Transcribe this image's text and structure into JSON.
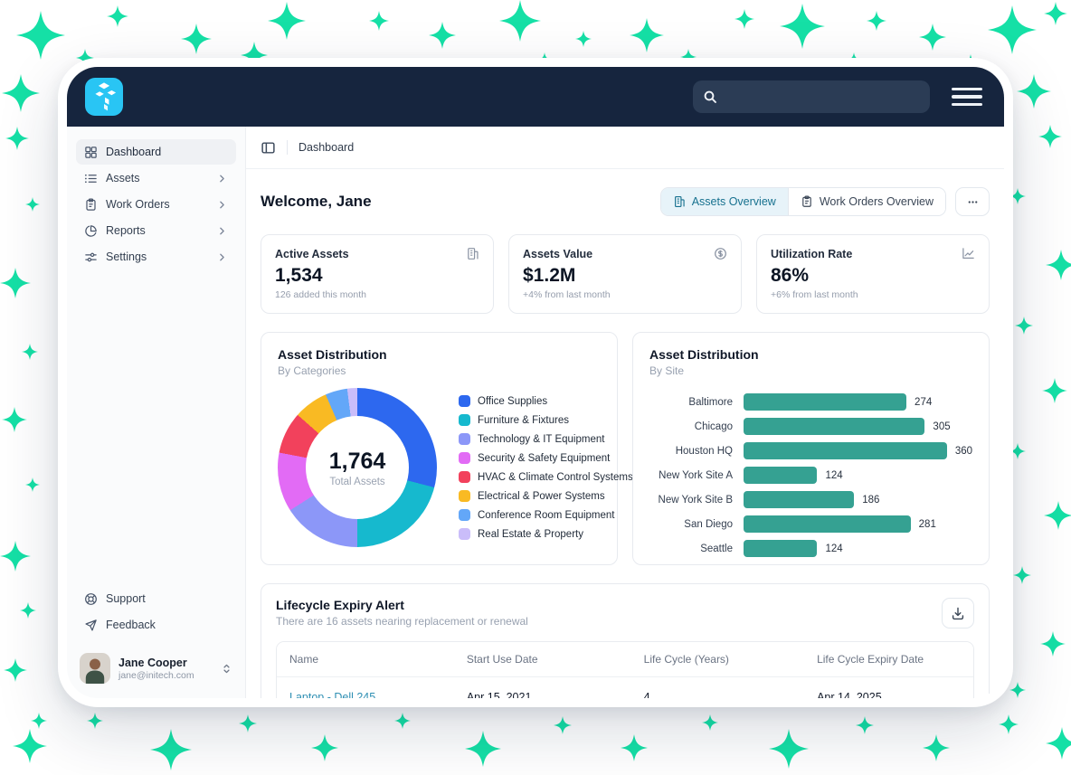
{
  "colors": {
    "sparkle": "#15E0A6",
    "header_navy": "#16253E",
    "brand_cyan": "#29C5F4",
    "accent_teal": "#17718F",
    "bar_color": "#35A192",
    "link": "#2E8FB3"
  },
  "header": {
    "logo_icon": "boxes-logo-icon",
    "search": {
      "value": "",
      "icon": "search-icon"
    },
    "menu_icon": "hamburger-icon"
  },
  "sidebar": {
    "items": [
      {
        "label": "Dashboard",
        "icon": "grid-icon",
        "active": true,
        "has_submenu": false
      },
      {
        "label": "Assets",
        "icon": "list-icon",
        "active": false,
        "has_submenu": true
      },
      {
        "label": "Work Orders",
        "icon": "clipboard-icon",
        "active": false,
        "has_submenu": true
      },
      {
        "label": "Reports",
        "icon": "pie-icon",
        "active": false,
        "has_submenu": true
      },
      {
        "label": "Settings",
        "icon": "sliders-icon",
        "active": false,
        "has_submenu": true
      }
    ],
    "footer_items": [
      {
        "label": "Support",
        "icon": "support-icon"
      },
      {
        "label": "Feedback",
        "icon": "send-icon"
      }
    ],
    "user": {
      "name": "Jane Cooper",
      "email": "jane@initech.com"
    }
  },
  "breadcrumb": {
    "current": "Dashboard"
  },
  "main": {
    "welcome": "Welcome, Jane",
    "tabs": [
      {
        "label": "Assets Overview",
        "icon": "building-icon",
        "active": true
      },
      {
        "label": "Work Orders Overview",
        "icon": "clipboard-icon",
        "active": false
      }
    ],
    "stats": [
      {
        "title": "Active Assets",
        "value": "1,534",
        "subtext": "126 added this month",
        "icon": "building-icon"
      },
      {
        "title": "Assets Value",
        "value": "$1.2M",
        "subtext": "+4% from last month",
        "icon": "dollar-coin-icon"
      },
      {
        "title": "Utilization Rate",
        "value": "86%",
        "subtext": "+6% from last month",
        "icon": "line-chart-icon"
      }
    ]
  },
  "chart_data": [
    {
      "type": "pie",
      "donut": true,
      "title": "Asset Distribution",
      "subtitle": "By Categories",
      "center_value": "1,764",
      "center_label": "Total Assets",
      "total": 1764,
      "legend_position": "right",
      "segments": [
        {
          "label": "Office Supplies",
          "value": 512,
          "color": "#2D68EF"
        },
        {
          "label": "Furniture & Fixtures",
          "value": 370,
          "color": "#16B9CE"
        },
        {
          "label": "Technology & IT Equipment",
          "value": 282,
          "color": "#8C97F8"
        },
        {
          "label": "Security & Safety Equipment",
          "value": 212,
          "color": "#E26BF5"
        },
        {
          "label": "HVAC & Climate Control Systems",
          "value": 150,
          "color": "#F2415C"
        },
        {
          "label": "Electrical & Power Systems",
          "value": 123,
          "color": "#F9BA23"
        },
        {
          "label": "Conference Room Equipment",
          "value": 79,
          "color": "#63A7F8"
        },
        {
          "label": "Real Estate & Property",
          "value": 36,
          "color": "#CABDFA"
        }
      ]
    },
    {
      "type": "bar",
      "orientation": "horizontal",
      "title": "Asset Distribution",
      "subtitle": "By Site",
      "categories": [
        "Baltimore",
        "Chicago",
        "Houston HQ",
        "New York Site A",
        "New York Site B",
        "San Diego",
        "Seattle"
      ],
      "values": [
        274,
        305,
        360,
        124,
        186,
        281,
        124
      ],
      "bar_color": "#35A192",
      "xlim": [
        0,
        385
      ],
      "grid": false,
      "value_labels": true
    }
  ],
  "lifecycle": {
    "title": "Lifecycle Expiry Alert",
    "subtitle": "There are 16 assets nearing replacement or renewal",
    "download_icon": "download-icon",
    "table": {
      "columns": [
        "Name",
        "Start Use Date",
        "Life Cycle (Years)",
        "Life Cycle Expiry Date"
      ],
      "rows": [
        {
          "name": "Laptop - Dell 245",
          "start_use_date": "Apr 15, 2021",
          "life_cycle_years": "4",
          "life_cycle_expiry_date": "Apr 14, 2025"
        }
      ]
    }
  }
}
